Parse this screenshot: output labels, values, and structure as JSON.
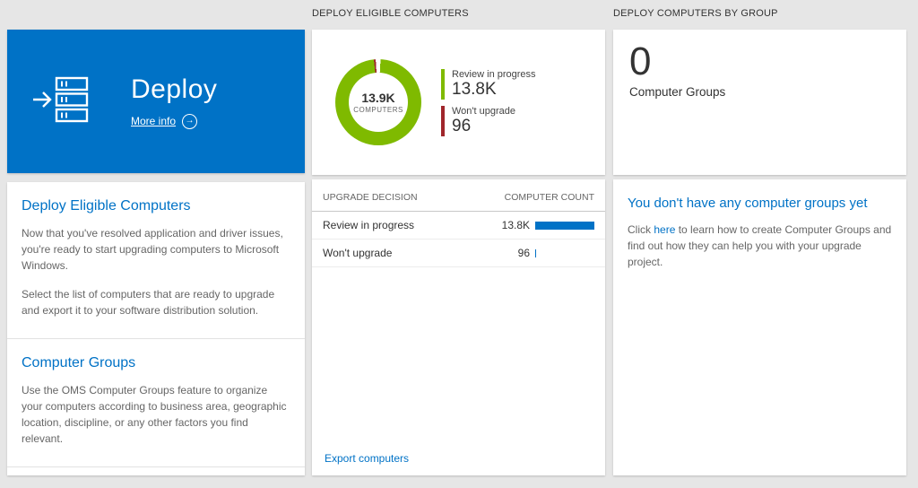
{
  "colors": {
    "accent_blue": "#0072c6",
    "donut_green": "#7fba00",
    "negative_red": "#a0262b",
    "bar_blue": "#0072c6",
    "background": "#e6e6e6"
  },
  "left": {
    "tile": {
      "title": "Deploy",
      "more_info": "More info"
    },
    "sections": [
      {
        "heading": "Deploy Eligible Computers",
        "paragraphs": [
          "Now that you've resolved application and driver issues, you're ready to start upgrading computers to Microsoft Windows.",
          "Select the list of computers that are ready to upgrade and export it to your software distribution solution."
        ]
      },
      {
        "heading": "Computer Groups",
        "paragraphs": [
          "Use the OMS Computer Groups feature to organize your computers according to business area, geographic location, discipline, or any other factors you find relevant."
        ]
      }
    ]
  },
  "middle": {
    "header": "DEPLOY ELIGIBLE COMPUTERS",
    "donut": {
      "value": "13.9K",
      "label": "COMPUTERS",
      "segments": [
        {
          "color": "#ffffff",
          "deg": 3
        },
        {
          "color": "#7fba00",
          "deg": 351
        },
        {
          "color": "#a0262b",
          "deg": 2.5
        },
        {
          "color": "#ffffff",
          "deg": 3.5
        }
      ]
    },
    "legend": [
      {
        "label": "Review in progress",
        "value": "13.8K",
        "color": "#7fba00"
      },
      {
        "label": "Won't upgrade",
        "value": "96",
        "color": "#a0262b"
      }
    ],
    "table": {
      "headers": [
        "UPGRADE DECISION",
        "COMPUTER COUNT"
      ],
      "rows": [
        {
          "label": "Review in progress",
          "value": "13.8K",
          "bar_pct": 100
        },
        {
          "label": "Won't upgrade",
          "value": "96",
          "bar_pct": 2
        }
      ]
    },
    "footer_link": "Export computers"
  },
  "right": {
    "header": "DEPLOY COMPUTERS BY GROUP",
    "count": "0",
    "count_label": "Computer Groups",
    "empty": {
      "heading": "You don't have any computer groups yet",
      "text_pre": "Click ",
      "link_label": "here",
      "text_post": " to learn how to create Computer Groups and find out how they can help you with your upgrade project."
    }
  }
}
